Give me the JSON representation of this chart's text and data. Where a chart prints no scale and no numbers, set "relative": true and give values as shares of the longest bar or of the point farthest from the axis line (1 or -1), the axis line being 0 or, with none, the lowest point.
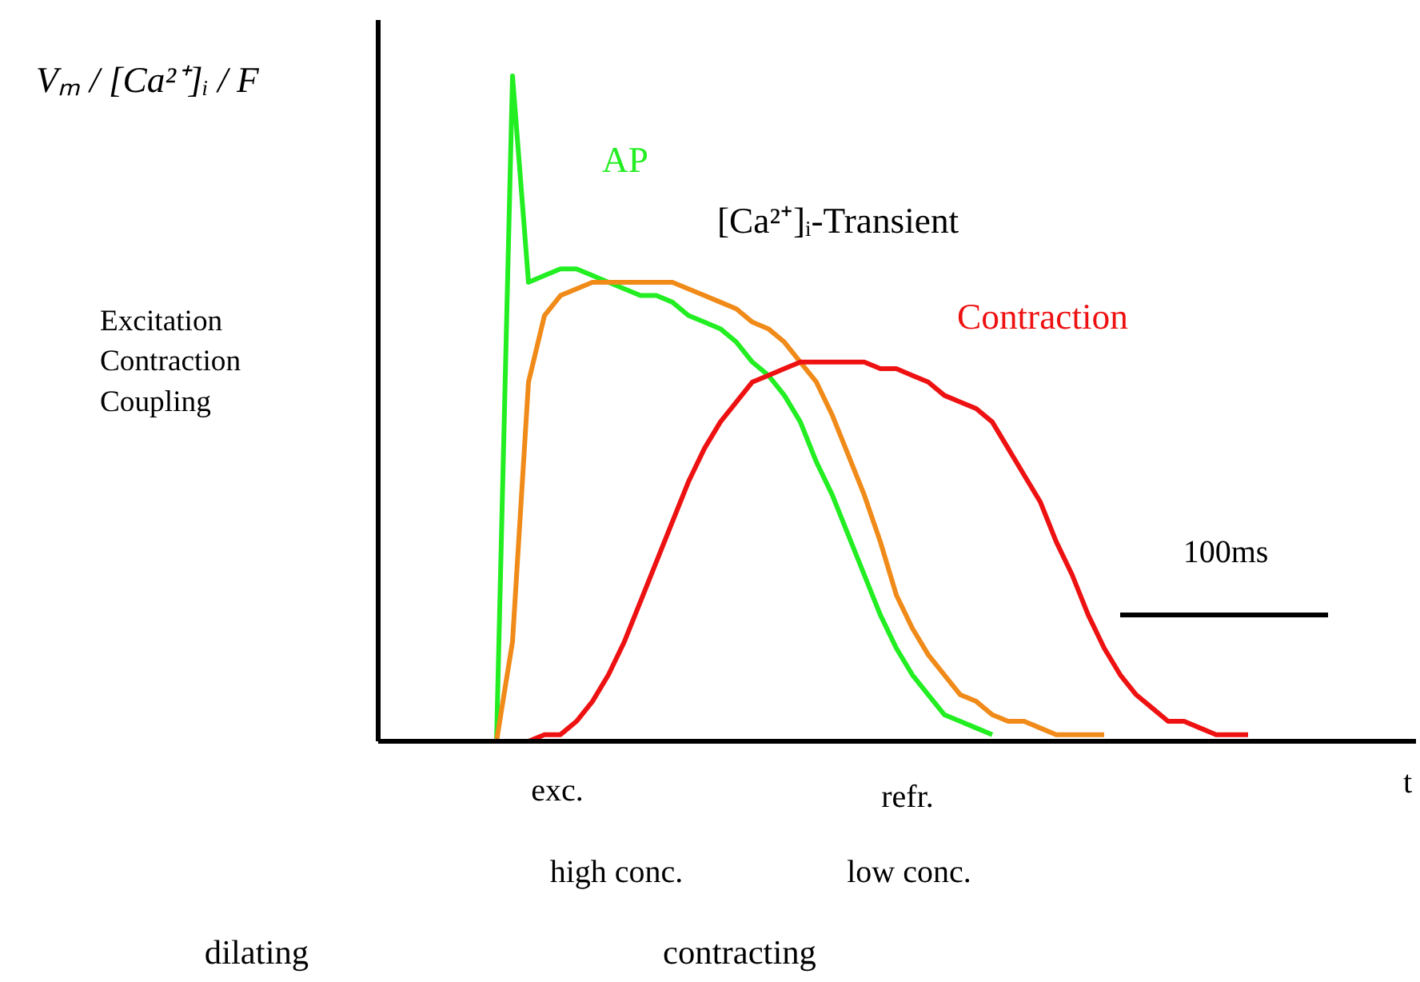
{
  "chart_data": {
    "type": "line",
    "relative": true,
    "legend": false,
    "grid": false,
    "xlabel": "t",
    "categories": [
      null,
      null,
      null,
      null,
      null,
      null,
      null,
      null,
      null,
      null,
      null,
      null,
      null,
      null,
      null,
      null,
      null,
      null,
      null,
      null,
      null,
      null,
      null,
      null,
      null,
      null,
      null,
      null,
      null,
      null,
      null,
      null,
      null,
      null,
      null,
      null,
      null,
      null,
      null,
      null,
      null,
      null,
      null,
      null,
      null,
      null,
      null,
      null,
      null,
      null,
      null,
      null,
      null,
      null,
      null
    ],
    "series": [
      {
        "name": "AP",
        "color": "#22ee22",
        "values": [
          0,
          0,
          1.0,
          0.69,
          0.7,
          0.71,
          0.71,
          0.7,
          0.69,
          0.68,
          0.67,
          0.67,
          0.66,
          0.64,
          0.63,
          0.62,
          0.6,
          0.57,
          0.55,
          0.52,
          0.48,
          0.42,
          0.37,
          0.31,
          0.25,
          0.19,
          0.14,
          0.1,
          0.07,
          0.04,
          0.03,
          0.02,
          0.01,
          null,
          null,
          null,
          null,
          null,
          null,
          null,
          null,
          null,
          null,
          null,
          null,
          null,
          null,
          null,
          null,
          null,
          null,
          null,
          null,
          null,
          null
        ]
      },
      {
        "name": "[Ca²⁺]ᵢ-Transient",
        "color": "#f08a18",
        "values": [
          null,
          0,
          0.15,
          0.54,
          0.64,
          0.67,
          0.68,
          0.69,
          0.69,
          0.69,
          0.69,
          0.69,
          0.69,
          0.68,
          0.67,
          0.66,
          0.65,
          0.63,
          0.62,
          0.6,
          0.57,
          0.54,
          0.49,
          0.43,
          0.37,
          0.3,
          0.22,
          0.17,
          0.13,
          0.1,
          0.07,
          0.06,
          0.04,
          0.03,
          0.03,
          0.02,
          0.01,
          0.01,
          0.01,
          0.01,
          null,
          null,
          null,
          null,
          null,
          null,
          null,
          null,
          null,
          null,
          null,
          null,
          null,
          null,
          null
        ]
      },
      {
        "name": "Contraction",
        "color": "#ee1111",
        "values": [
          null,
          null,
          0,
          0,
          0.01,
          0.01,
          0.03,
          0.06,
          0.1,
          0.15,
          0.21,
          0.27,
          0.33,
          0.39,
          0.44,
          0.48,
          0.51,
          0.54,
          0.55,
          0.56,
          0.57,
          0.57,
          0.57,
          0.57,
          0.57,
          0.56,
          0.56,
          0.55,
          0.54,
          0.52,
          0.51,
          0.5,
          0.48,
          0.44,
          0.4,
          0.36,
          0.3,
          0.25,
          0.19,
          0.14,
          0.1,
          0.07,
          0.05,
          0.03,
          0.03,
          0.02,
          0.01,
          0.01,
          0.01,
          null,
          null,
          null,
          null,
          null,
          null
        ]
      },
      {
        "color": "#000000",
        "values": [
          null,
          null,
          null,
          null,
          null,
          null,
          null,
          null,
          null,
          null,
          null,
          null,
          null,
          null,
          null,
          null,
          null,
          null,
          null,
          null,
          null,
          null,
          null,
          null,
          null,
          null,
          null,
          null,
          null,
          null,
          null,
          null,
          null,
          null,
          null,
          null,
          null,
          null,
          null,
          null,
          0.19,
          0.19,
          0.19,
          0.19,
          0.19,
          0.19,
          0.19,
          0.19,
          0.19,
          0.19,
          0.19,
          0.19,
          0.19,
          0.19,
          null
        ]
      }
    ],
    "annotations": [
      "Vₘ / [Ca²⁺]ᵢ / F",
      "Excitation\nContraction\nCoupling",
      "100ms",
      "exc.",
      "refr.",
      "high conc.",
      "low conc.",
      "dilating",
      "contracting"
    ]
  }
}
